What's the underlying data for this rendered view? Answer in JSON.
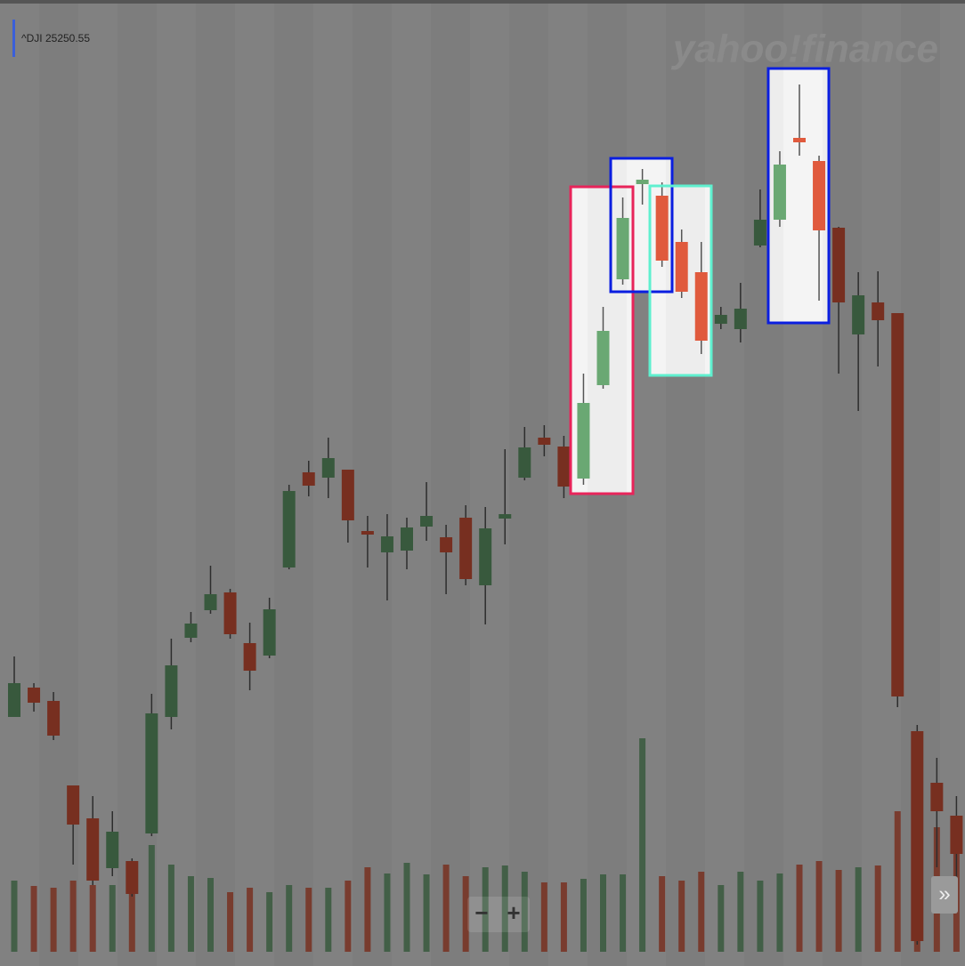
{
  "chart_data": {
    "type": "candlestick",
    "title": "^DJI 25250.55",
    "watermark": "yahoo!finance",
    "controls": {
      "zoom_out": "−",
      "zoom_in": "+",
      "scroll": "»"
    },
    "ylim": [
      0,
      1070
    ],
    "up_color": "#6aa873",
    "down_color": "#e05a3d",
    "open": [
      264,
      297,
      282,
      187,
      150,
      94,
      102,
      133,
      264,
      353,
      384,
      404,
      347,
      333,
      432,
      539,
      533,
      542,
      473,
      449,
      451,
      478,
      466,
      488,
      412,
      487,
      533,
      578,
      568,
      532,
      637,
      756,
      863,
      850,
      798,
      764,
      706,
      700,
      794,
      823,
      915,
      889,
      814,
      694,
      730,
      718,
      248,
      190,
      153
    ],
    "high": [
      332,
      302,
      292,
      187,
      175,
      158,
      105,
      290,
      352,
      382,
      434,
      408,
      370,
      398,
      525,
      552,
      578,
      542,
      490,
      492,
      488,
      528,
      480,
      502,
      500,
      565,
      590,
      592,
      580,
      650,
      725,
      848,
      880,
      865,
      812,
      798,
      725,
      752,
      857,
      900,
      975,
      895,
      815,
      764,
      765,
      718,
      255,
      218,
      175
    ],
    "low": [
      264,
      270,
      238,
      98,
      75,
      85,
      62,
      130,
      250,
      348,
      380,
      352,
      294,
      330,
      430,
      512,
      510,
      460,
      432,
      395,
      430,
      462,
      402,
      412,
      368,
      458,
      530,
      557,
      510,
      525,
      633,
      750,
      840,
      770,
      735,
      672,
      700,
      685,
      792,
      815,
      895,
      732,
      650,
      608,
      658,
      275,
      8,
      95,
      70
    ],
    "close": [
      302,
      280,
      243,
      143,
      80,
      135,
      65,
      268,
      322,
      369,
      402,
      357,
      316,
      385,
      518,
      524,
      555,
      485,
      469,
      467,
      477,
      490,
      449,
      419,
      476,
      492,
      567,
      570,
      523,
      617,
      698,
      825,
      868,
      777,
      742,
      687,
      716,
      723,
      823,
      885,
      910,
      811,
      730,
      738,
      710,
      287,
      12,
      158,
      110
    ],
    "volume": [
      80,
      74,
      72,
      80,
      75,
      75,
      80,
      120,
      98,
      85,
      83,
      67,
      72,
      67,
      75,
      72,
      72,
      80,
      95,
      88,
      100,
      87,
      98,
      85,
      95,
      97,
      90,
      78,
      78,
      82,
      87,
      87,
      240,
      85,
      80,
      90,
      75,
      90,
      80,
      88,
      98,
      102,
      92,
      95,
      97,
      158,
      190,
      140,
      125
    ]
  }
}
